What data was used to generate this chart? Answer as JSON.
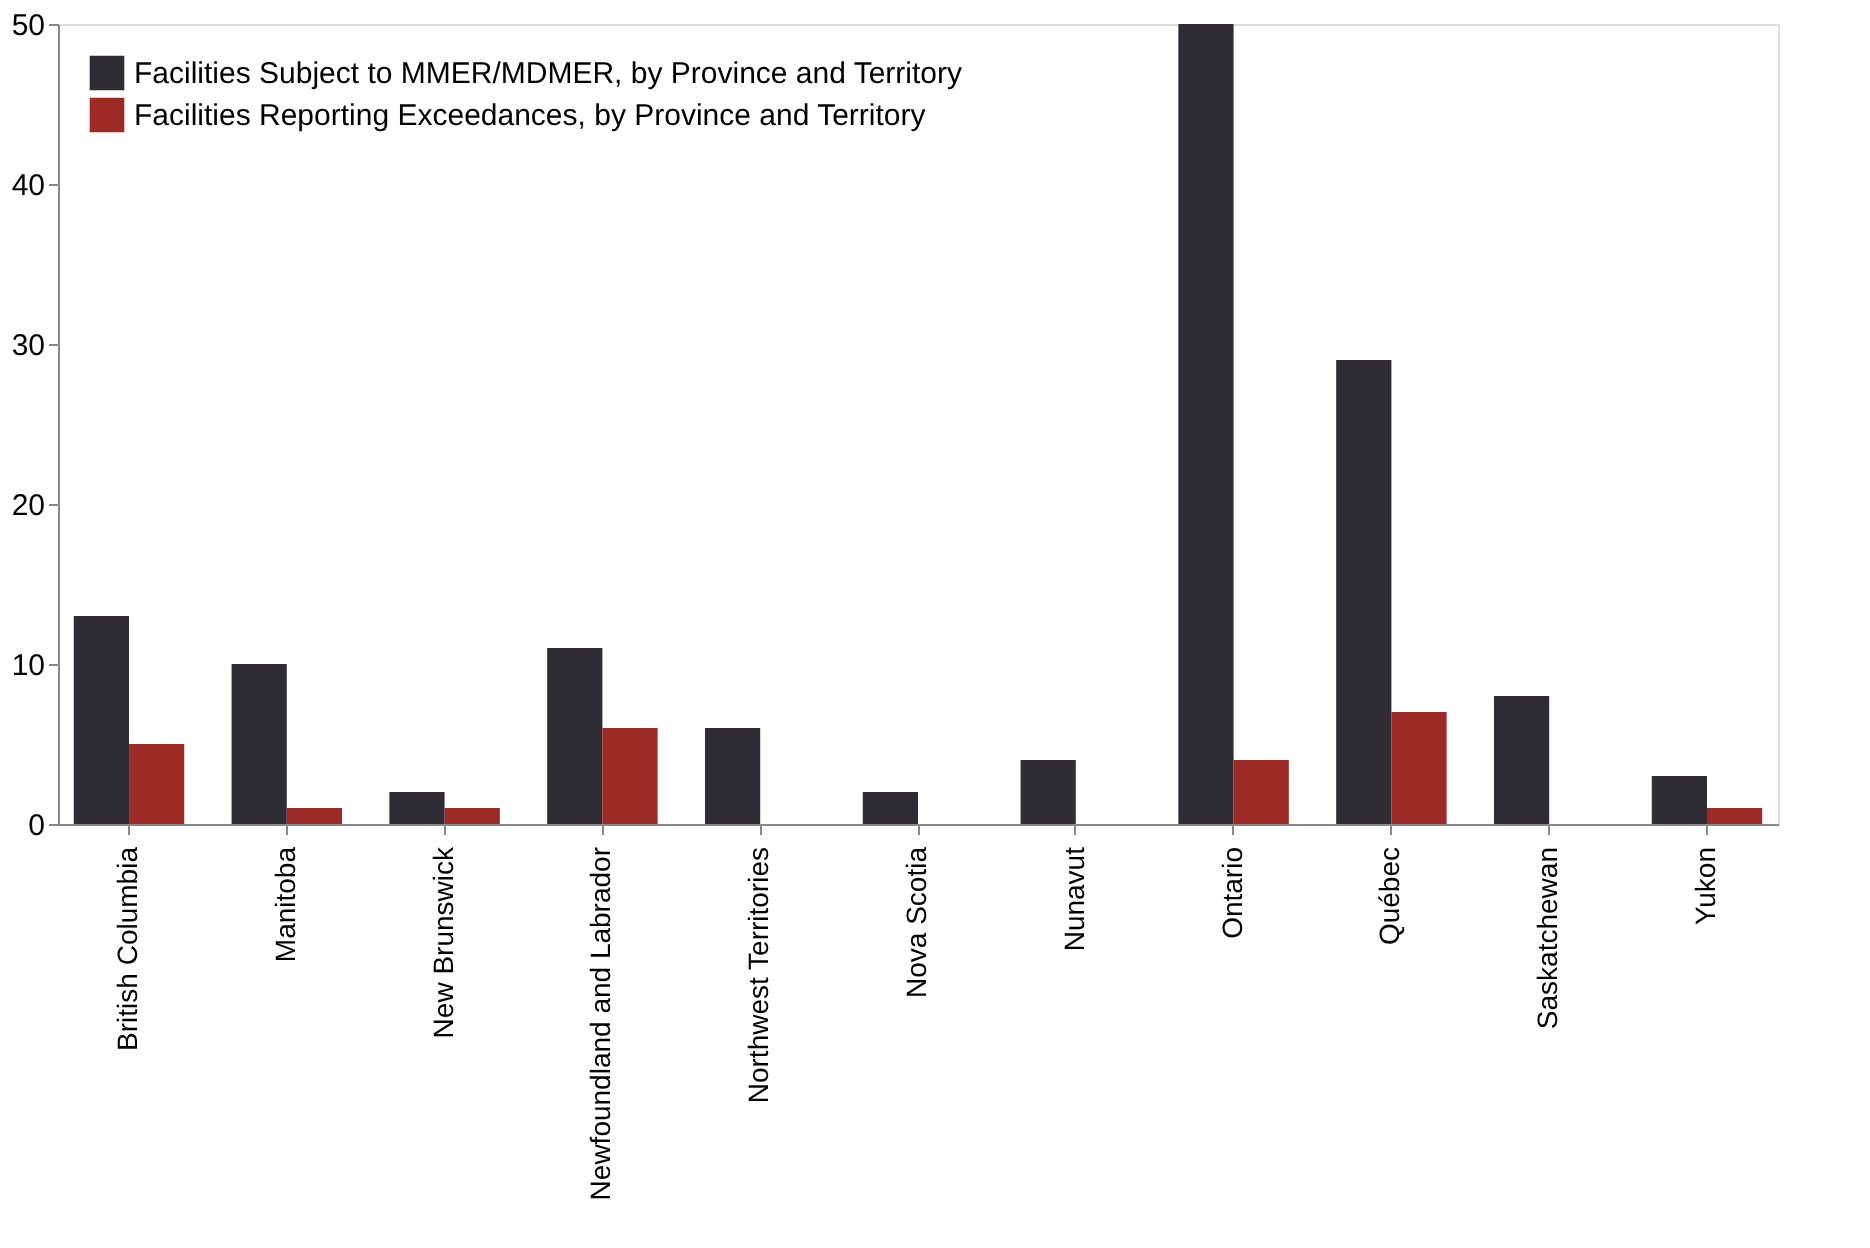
{
  "chart_data": {
    "type": "bar",
    "categories": [
      "British Columbia",
      "Manitoba",
      "New Brunswick",
      "Newfoundland and Labrador",
      "Northwest Territories",
      "Nova Scotia",
      "Nunavut",
      "Ontario",
      "Québec",
      "Saskatchewan",
      "Yukon"
    ],
    "series": [
      {
        "name": "Facilities Subject to MMER/MDMER, by Province and Territory",
        "color": "#302c33",
        "values": [
          13,
          10,
          2,
          11,
          6,
          2,
          4,
          50,
          29,
          8,
          3
        ]
      },
      {
        "name": "Facilities Reporting Exceedances, by Province and Territory",
        "color": "#9e2a26",
        "values": [
          5,
          1,
          1,
          6,
          0,
          0,
          0,
          4,
          7,
          0,
          1
        ]
      }
    ],
    "ylim": [
      0,
      50
    ],
    "yticks": [
      0,
      10,
      20,
      30,
      40,
      50
    ],
    "grid": false,
    "legend": "top left"
  }
}
